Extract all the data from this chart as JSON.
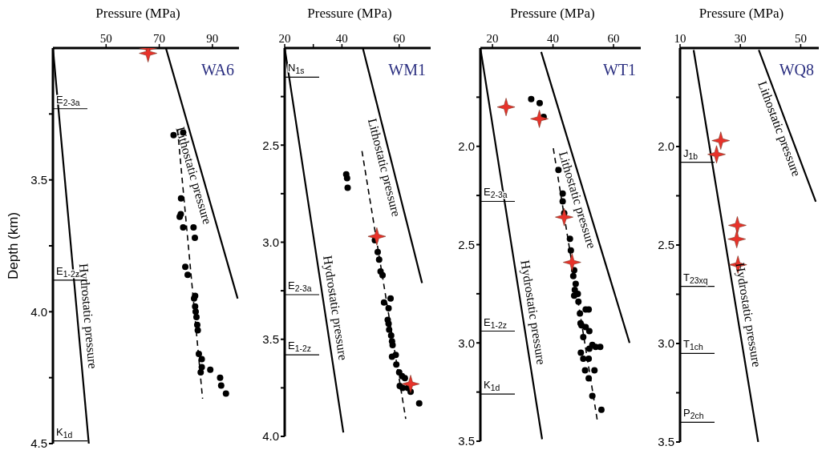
{
  "chart_data": [
    {
      "type": "scatter",
      "title": "WA6",
      "xlabel": "Pressure (MPa)",
      "ylabel": "Depth (km)",
      "xlim": [
        30,
        100
      ],
      "xticks": [
        50,
        70,
        90
      ],
      "ylim": [
        4.5,
        3.0
      ],
      "yticks": [
        {
          "value": 3.25,
          "label": null
        },
        3.5,
        {
          "value": 3.75,
          "label": null
        },
        {
          "value": 4,
          "label": "4.0"
        },
        {
          "value": 4.25,
          "label": null
        },
        4.5
      ],
      "ref_lines": [
        {
          "axis": "y",
          "value": 3.23,
          "label": "E$_{2-3a}$"
        },
        {
          "axis": "y",
          "value": 3.88,
          "label": "E$_{1-2z}$"
        },
        {
          "axis": "y",
          "value": 4.49,
          "label": "K$_{1d}$"
        }
      ],
      "series": [
        {
          "name": "Hydrostatic pressure",
          "type": "line",
          "color": "#000000",
          "x": [
            30,
            43.5
          ],
          "values": [
            3.0,
            4.5
          ]
        },
        {
          "name": "Lithostatic pressure",
          "type": "line",
          "color": "#000000",
          "x": [
            72.5,
            99.5
          ],
          "values": [
            3.0,
            3.95
          ]
        },
        {
          "type": "line",
          "line_style": "dashed",
          "color": "#000000",
          "x": [
            76.9,
            86.3
          ],
          "values": [
            3.31,
            4.33
          ]
        },
        {
          "type": "scatter",
          "marker": "circle",
          "color": "#000000",
          "x": [
            75.4,
            79.0,
            78.2,
            78.1,
            77.7,
            79.0,
            82.9,
            83.4,
            79.8,
            80.7,
            83.5,
            83.1,
            83.5,
            83.7,
            84.0,
            84.3,
            84.5,
            84.9,
            86.0,
            86.0,
            85.6,
            89.2,
            92.9,
            93.3,
            95.1
          ],
          "values": [
            3.33,
            3.32,
            3.57,
            3.63,
            3.64,
            3.68,
            3.68,
            3.72,
            3.83,
            3.86,
            3.94,
            3.95,
            3.98,
            4.0,
            4.02,
            4.05,
            4.07,
            4.16,
            4.18,
            4.21,
            4.23,
            4.22,
            4.25,
            4.28,
            4.31
          ]
        },
        {
          "type": "scatter",
          "marker": "star",
          "color": "#e8322a",
          "x": [
            65.8,
            65.8
          ],
          "values": [
            3.0,
            3.02
          ]
        }
      ]
    },
    {
      "type": "scatter",
      "title": "WM1",
      "xlabel": "Pressure (MPa)",
      "xlim": [
        20,
        71
      ],
      "xticks": [
        20,
        {
          "value": 30,
          "label": null
        },
        40,
        60
      ],
      "ylim": [
        4.0,
        2.0
      ],
      "yticks": [
        {
          "value": 2.25,
          "label": null
        },
        2.5,
        {
          "value": 2.75,
          "label": null
        },
        {
          "value": 3,
          "label": "3.0"
        },
        {
          "value": 3.25,
          "label": null
        },
        3.5,
        {
          "value": 3.75,
          "label": null
        },
        {
          "value": 4,
          "label": "4.0"
        }
      ],
      "ref_lines": [
        {
          "axis": "y",
          "value": 2.15,
          "label": "N$_{1s}$"
        },
        {
          "axis": "y",
          "value": 3.27,
          "label": "E$_{2-3a}$"
        },
        {
          "axis": "y",
          "value": 3.58,
          "label": "E$_{1-2z}$"
        }
      ],
      "series": [
        {
          "name": "Hydrostatic pressure",
          "type": "line",
          "color": "#000000",
          "x": [
            20,
            40.5
          ],
          "values": [
            2.0,
            3.98
          ]
        },
        {
          "name": "Lithostatic pressure",
          "type": "line",
          "color": "#000000",
          "x": [
            47.3,
            68.0
          ],
          "values": [
            2.0,
            3.21
          ]
        },
        {
          "type": "line",
          "line_style": "dashed",
          "color": "#000000",
          "x": [
            47.0,
            62.3
          ],
          "values": [
            2.53,
            3.91
          ]
        },
        {
          "type": "scatter",
          "marker": "circle",
          "color": "#000000",
          "x": [
            41.5,
            41.8,
            42.0,
            51.5,
            52.5,
            53.0,
            53.5,
            54.2,
            54.7,
            57.0,
            56.3,
            56.0,
            56.3,
            56.5,
            57.2,
            57.5,
            57.7,
            57.5,
            58.8,
            59.0,
            60.0,
            61.0,
            62.0,
            60.2,
            61.2,
            63.0,
            64.0,
            67.0
          ],
          "values": [
            2.65,
            2.67,
            2.72,
            2.99,
            3.05,
            3.09,
            3.15,
            3.17,
            3.31,
            3.29,
            3.34,
            3.4,
            3.42,
            3.45,
            3.48,
            3.51,
            3.53,
            3.59,
            3.58,
            3.63,
            3.67,
            3.69,
            3.7,
            3.74,
            3.75,
            3.75,
            3.77,
            3.83
          ]
        },
        {
          "type": "scatter",
          "marker": "star",
          "color": "#e8322a",
          "x": [
            52.2,
            64.0
          ],
          "values": [
            2.97,
            3.73
          ]
        }
      ]
    },
    {
      "type": "scatter",
      "title": "WT1",
      "xlabel": "Pressure (MPa)",
      "xlim": [
        16,
        69
      ],
      "xticks": [
        20,
        40,
        60
      ],
      "ylim": [
        3.5,
        1.5
      ],
      "yticks": [
        {
          "value": 1.75,
          "label": null
        },
        {
          "value": 2,
          "label": "2.0"
        },
        {
          "value": 2.25,
          "label": null
        },
        2.5,
        {
          "value": 2.75,
          "label": null
        },
        {
          "value": 3,
          "label": "3.0"
        },
        {
          "value": 3.25,
          "label": null
        },
        3.5
      ],
      "ref_lines": [
        {
          "axis": "y",
          "value": 2.28,
          "label": "E$_{2-3a}$"
        },
        {
          "axis": "y",
          "value": 2.94,
          "label": "E$_{1-2z}$"
        },
        {
          "axis": "y",
          "value": 3.26,
          "label": "K$_{1d}$"
        }
      ],
      "series": [
        {
          "name": "Hydrostatic pressure",
          "type": "line",
          "color": "#000000",
          "x": [
            16,
            36.4
          ],
          "values": [
            1.5,
            3.49
          ]
        },
        {
          "name": "Lithostatic pressure",
          "type": "line",
          "color": "#000000",
          "x": [
            36.1,
            65.3
          ],
          "values": [
            1.52,
            3.0
          ]
        },
        {
          "type": "line",
          "line_style": "dashed",
          "color": "#000000",
          "x": [
            40.1,
            54.6
          ],
          "values": [
            2.01,
            3.39
          ]
        },
        {
          "type": "scatter",
          "marker": "circle",
          "color": "#000000",
          "x": [
            32.8,
            35.6,
            36.9,
            41.8,
            43.2,
            43.2,
            43.7,
            45.6,
            45.9,
            47.0,
            46.7,
            47.5,
            47.2,
            48.2,
            47.0,
            48.4,
            50.8,
            51.8,
            48.9,
            49.1,
            49.4,
            50.8,
            52.0,
            50.0,
            53.0,
            54.1,
            52.0,
            55.6,
            49.2,
            50.0,
            51.8,
            50.6,
            53.7,
            51.8,
            53.0,
            56.0
          ],
          "values": [
            1.76,
            1.78,
            1.85,
            2.12,
            2.24,
            2.28,
            2.34,
            2.47,
            2.53,
            2.63,
            2.66,
            2.7,
            2.73,
            2.75,
            2.76,
            2.79,
            2.83,
            2.83,
            2.85,
            2.9,
            2.91,
            2.92,
            2.94,
            2.97,
            3.01,
            3.02,
            3.03,
            3.02,
            3.05,
            3.08,
            3.08,
            3.14,
            3.14,
            3.18,
            3.27,
            3.34
          ]
        },
        {
          "type": "scatter",
          "marker": "star",
          "color": "#e8322a",
          "x": [
            24.5,
            35.5,
            43.7,
            46.3
          ],
          "values": [
            1.8,
            1.86,
            2.36,
            2.59
          ]
        }
      ]
    },
    {
      "type": "scatter",
      "title": "WQ8",
      "xlabel": "Pressure (MPa)",
      "xlim": [
        10,
        56
      ],
      "xticks": [
        10,
        30,
        50
      ],
      "ylim": [
        3.5,
        1.5
      ],
      "yticks": [
        {
          "value": 1.75,
          "label": null
        },
        {
          "value": 2,
          "label": "2.0"
        },
        {
          "value": 2.25,
          "label": null
        },
        2.5,
        {
          "value": 2.75,
          "label": null
        },
        {
          "value": 3,
          "label": "3.0"
        },
        {
          "value": 3.25,
          "label": null
        },
        3.5
      ],
      "ref_lines": [
        {
          "axis": "y",
          "value": 2.08,
          "label": "J$_{1b}$"
        },
        {
          "axis": "y",
          "value": 2.71,
          "label": "T$_{23xq}$"
        },
        {
          "axis": "y",
          "value": 3.05,
          "label": "T$_{1ch}$"
        },
        {
          "axis": "y",
          "value": 3.4,
          "label": "P$_{2ch}$"
        }
      ],
      "series": [
        {
          "name": "Hydrostatic pressure",
          "type": "line",
          "color": "#000000",
          "x": [
            14.5,
            35.9
          ],
          "values": [
            1.51,
            3.5
          ]
        },
        {
          "name": "Lithostatic pressure",
          "type": "line",
          "color": "#000000",
          "x": [
            36.1,
            55.0
          ],
          "values": [
            1.51,
            2.28
          ]
        },
        {
          "type": "scatter",
          "marker": "star",
          "color": "#e8322a",
          "x": [
            23.5,
            22.1,
            29.0,
            28.8,
            29.2
          ],
          "values": [
            1.97,
            2.04,
            2.4,
            2.47,
            2.6
          ]
        }
      ]
    }
  ]
}
